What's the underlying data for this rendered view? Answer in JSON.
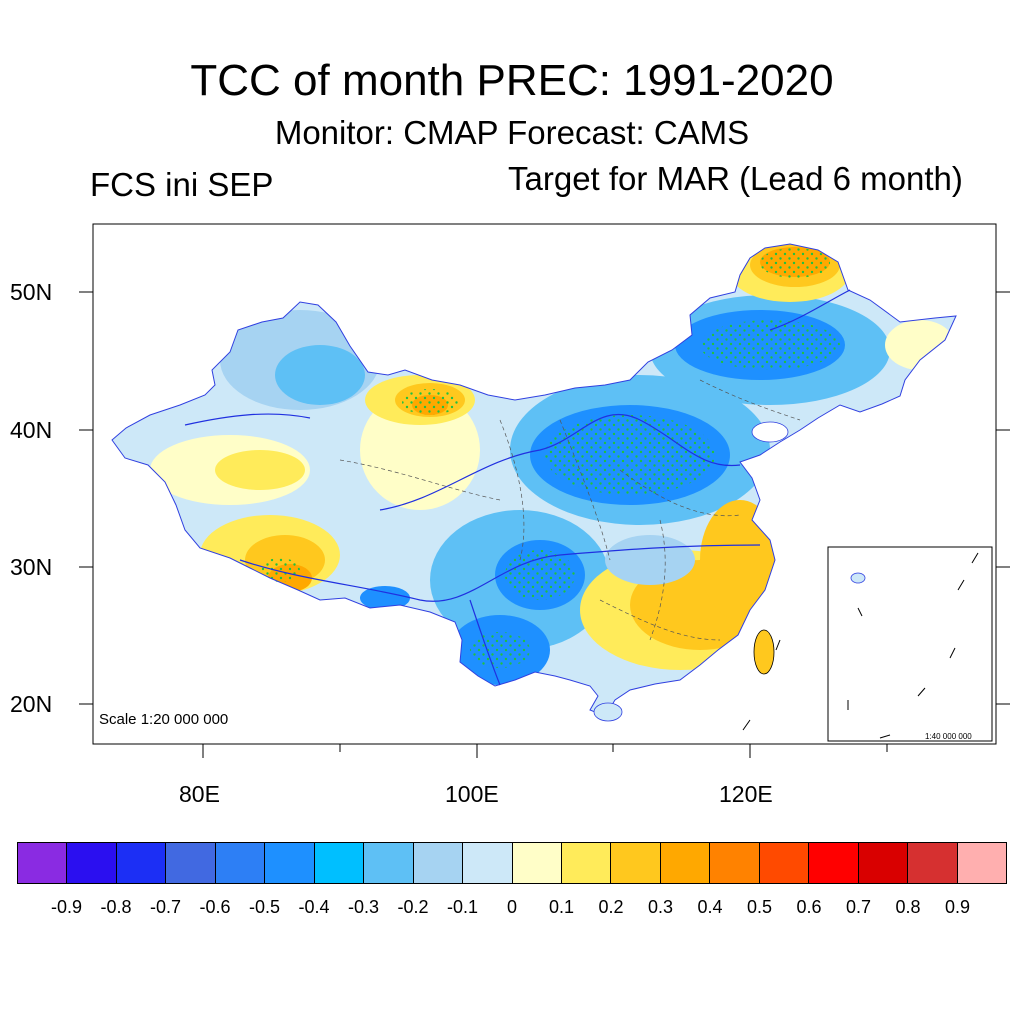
{
  "header": {
    "title": "TCC of month PREC: 1991-2020",
    "subtitle": "Monitor: CMAP   Forecast: CAMS",
    "left_label": "FCS ini SEP",
    "right_label": "Target for MAR (Lead 6 month)"
  },
  "map": {
    "lat_labels": [
      "50N",
      "40N",
      "30N",
      "20N"
    ],
    "lon_labels": [
      "80E",
      "100E",
      "120E"
    ],
    "scale_note": "Scale 1:20 000 000",
    "inset_scale_note": "1:40 000 000",
    "colors": {
      "strong_neg": "#1e90ff",
      "neg": "#5ec0f5",
      "weak_neg": "#a6d3f2",
      "near_zero_neg": "#cde8f8",
      "near_zero_pos": "#fffec8",
      "weak_pos": "#ffeb5a",
      "pos": "#ffc81e",
      "strong_pos": "#ffa800",
      "very_strong_pos": "#ff8200",
      "river": "#2030e0",
      "stipple": "#20c040"
    }
  },
  "colorbar": {
    "colors": [
      "#8a2be2",
      "#2b0ff0",
      "#1c2ff5",
      "#4169e1",
      "#2d7ff5",
      "#1e90ff",
      "#00bfff",
      "#5ec0f5",
      "#a6d3f2",
      "#cde8f8",
      "#fffec8",
      "#ffeb5a",
      "#ffc81e",
      "#ffa800",
      "#ff8200",
      "#ff4a00",
      "#ff0000",
      "#d90000",
      "#d63030",
      "#ffafaf"
    ],
    "labels": [
      "-0.9",
      "-0.8",
      "-0.7",
      "-0.6",
      "-0.5",
      "-0.4",
      "-0.3",
      "-0.2",
      "-0.1",
      "0",
      "0.1",
      "0.2",
      "0.3",
      "0.4",
      "0.5",
      "0.6",
      "0.7",
      "0.8",
      "0.9"
    ]
  }
}
